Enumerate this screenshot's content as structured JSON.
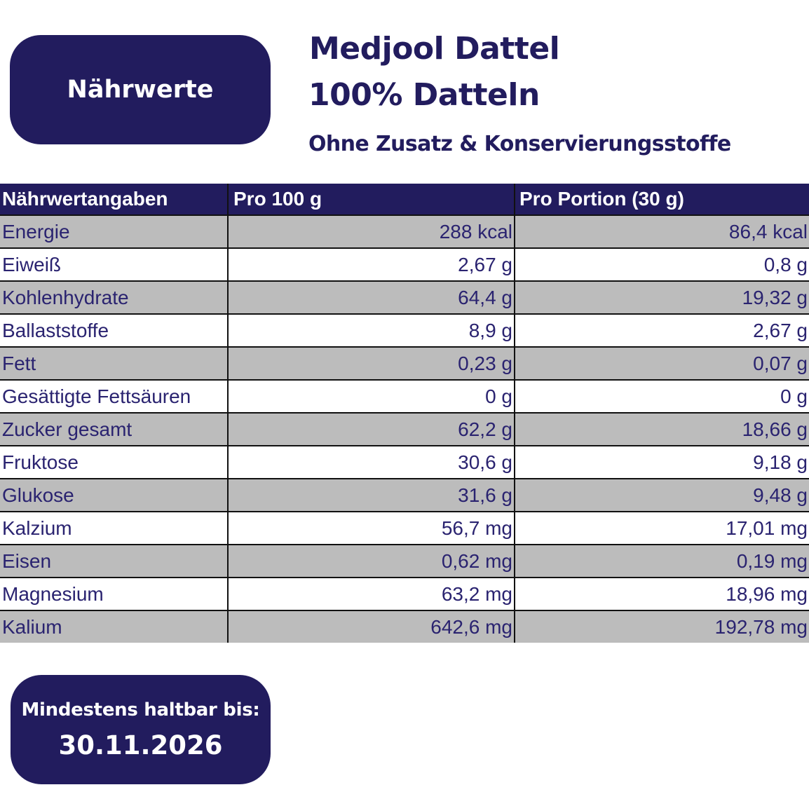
{
  "badge_top": {
    "label": "Nährwerte"
  },
  "header": {
    "title_line1": "Medjool Dattel",
    "title_line2": "100% Datteln",
    "subtitle": "Ohne Zusatz & Konservierungsstoffe"
  },
  "table": {
    "columns": [
      "Nährwertangaben",
      "Pro 100 g",
      "Pro Portion (30 g)"
    ],
    "rows": [
      {
        "name": "Energie",
        "per100": "288 kcal",
        "portion": "86,4 kcal"
      },
      {
        "name": "Eiweiß",
        "per100": "2,67 g",
        "portion": "0,8 g"
      },
      {
        "name": "Kohlenhydrate",
        "per100": "64,4 g",
        "portion": "19,32 g"
      },
      {
        "name": "Ballaststoffe",
        "per100": "8,9 g",
        "portion": "2,67 g"
      },
      {
        "name": "Fett",
        "per100": "0,23 g",
        "portion": "0,07 g"
      },
      {
        "name": "Gesättigte Fettsäuren",
        "per100": "0 g",
        "portion": "0 g"
      },
      {
        "name": "Zucker gesamt",
        "per100": "62,2 g",
        "portion": "18,66 g"
      },
      {
        "name": "Fruktose",
        "per100": "30,6 g",
        "portion": "9,18 g"
      },
      {
        "name": "Glukose",
        "per100": "31,6 g",
        "portion": "9,48 g"
      },
      {
        "name": "Kalzium",
        "per100": "56,7 mg",
        "portion": "17,01 mg"
      },
      {
        "name": "Eisen",
        "per100": "0,62 mg",
        "portion": "0,19 mg"
      },
      {
        "name": "Magnesium",
        "per100": "63,2 mg",
        "portion": "18,96 mg"
      },
      {
        "name": "Kalium",
        "per100": "642,6 mg",
        "portion": "192,78 mg"
      }
    ]
  },
  "badge_bottom": {
    "label": "Mindestens haltbar bis:",
    "date": "30.11.2026"
  },
  "colors": {
    "brand_navy": "#221c5e",
    "row_shade": "#bcbcbc",
    "text_navy": "#2a2370"
  }
}
